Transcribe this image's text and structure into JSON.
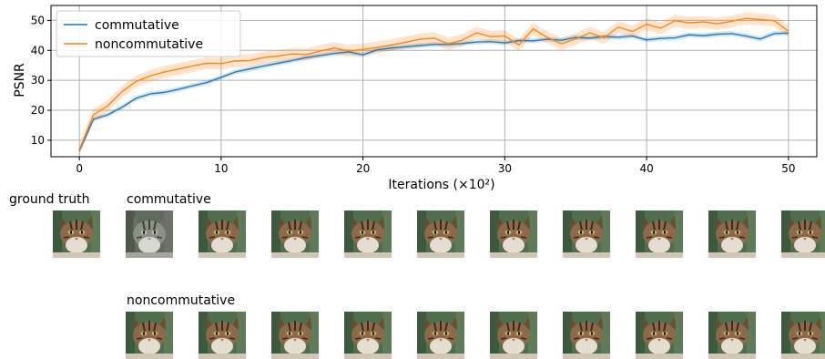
{
  "chart_data": {
    "type": "line",
    "xlabel": "Iterations (×10²)",
    "ylabel": "PSNR",
    "xlim": [
      -2,
      52
    ],
    "ylim": [
      4.5,
      55
    ],
    "xticks": [
      0,
      10,
      20,
      30,
      40,
      50
    ],
    "yticks": [
      10,
      20,
      30,
      40,
      50
    ],
    "grid": true,
    "legend_position": "top-left",
    "x": [
      0,
      1,
      2,
      3,
      4,
      5,
      6,
      7,
      8,
      9,
      10,
      11,
      12,
      13,
      14,
      15,
      16,
      17,
      18,
      19,
      20,
      21,
      22,
      23,
      24,
      25,
      26,
      27,
      28,
      29,
      30,
      31,
      32,
      33,
      34,
      35,
      36,
      37,
      38,
      39,
      40,
      41,
      42,
      43,
      44,
      45,
      46,
      47,
      48,
      49,
      50
    ],
    "series": [
      {
        "name": "commutative",
        "color": "#1f77b4",
        "values": [
          6.5,
          17.0,
          18.5,
          21.0,
          24.0,
          25.5,
          26.0,
          27.0,
          28.2,
          29.3,
          31.0,
          32.8,
          33.8,
          34.8,
          35.7,
          36.6,
          37.6,
          38.3,
          39.0,
          39.5,
          38.5,
          40.2,
          40.8,
          41.2,
          41.6,
          42.0,
          42.0,
          42.3,
          42.8,
          42.9,
          42.5,
          43.3,
          43.2,
          43.7,
          43.4,
          44.3,
          44.1,
          44.6,
          44.4,
          44.8,
          43.5,
          44.0,
          44.2,
          45.2,
          44.9,
          45.4,
          45.6,
          44.8,
          43.8,
          45.6,
          45.8
        ],
        "band": 0.8
      },
      {
        "name": "noncommutative",
        "color": "#ff7f0e",
        "values": [
          6.8,
          18.5,
          21.5,
          26.2,
          29.6,
          31.5,
          32.8,
          33.8,
          34.8,
          35.7,
          35.6,
          36.5,
          36.6,
          37.6,
          38.1,
          38.8,
          38.6,
          39.8,
          40.8,
          39.8,
          40.3,
          41.0,
          41.8,
          42.7,
          43.7,
          44.1,
          42.2,
          43.4,
          45.9,
          44.6,
          44.8,
          41.8,
          47.2,
          44.3,
          42.2,
          43.8,
          45.9,
          44.2,
          47.8,
          46.3,
          48.7,
          47.4,
          49.9,
          49.2,
          49.5,
          48.9,
          49.7,
          50.7,
          50.3,
          49.9,
          46.4
        ],
        "band": 2.0
      }
    ]
  },
  "labels": {
    "ground_truth": "ground truth",
    "commutative": "commutative",
    "noncommutative": "noncommutative"
  }
}
